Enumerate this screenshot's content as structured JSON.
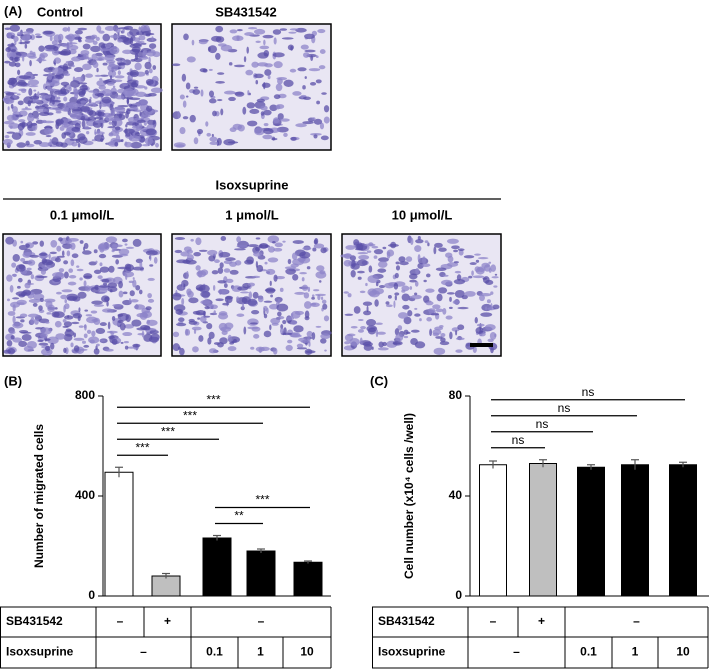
{
  "panel_a": {
    "label": "(A)",
    "top_images": [
      "Control",
      "SB431542"
    ],
    "group_label": "Isoxsuprine",
    "bottom_images": [
      "0.1 μmol/L",
      "1 μmol/L",
      "10 μmol/L"
    ]
  },
  "chart_data": [
    {
      "type": "bar",
      "panel": "(B)",
      "y_label": "Number of migrated cells",
      "categories": [
        null,
        null,
        null,
        null,
        null
      ],
      "values": [
        495,
        80,
        232,
        180,
        135
      ],
      "errors": [
        20,
        10,
        10,
        8,
        5
      ],
      "colors": [
        "#ffffff",
        "#bfbfbf",
        "#000000",
        "#000000",
        "#000000"
      ],
      "ylim": [
        0,
        800
      ],
      "yticks": [
        0,
        400,
        800
      ],
      "comparisons": [
        {
          "pair": [
            2,
            3
          ],
          "label": "**"
        },
        {
          "pair": [
            2,
            4
          ],
          "label": "***"
        },
        {
          "pair": [
            0,
            1
          ],
          "label": "***"
        },
        {
          "pair": [
            0,
            2
          ],
          "label": "***"
        },
        {
          "pair": [
            0,
            3
          ],
          "label": "***"
        },
        {
          "pair": [
            0,
            4
          ],
          "label": "***"
        }
      ],
      "table": {
        "rows": [
          {
            "name": "SB431542",
            "cells": [
              "–",
              "+",
              "–"
            ],
            "spans": [
              1,
              1,
              3
            ]
          },
          {
            "name": "Isoxsuprine",
            "cells": [
              "–",
              "0.1",
              "1",
              "10"
            ],
            "spans": [
              2,
              1,
              1,
              1
            ]
          }
        ]
      }
    },
    {
      "type": "bar",
      "panel": "(C)",
      "y_label": "Cell number (x10⁴ cells /well)",
      "categories": [
        null,
        null,
        null,
        null,
        null
      ],
      "values": [
        52.5,
        53,
        51.5,
        52.5,
        52.5
      ],
      "errors": [
        1.5,
        1.5,
        1,
        2,
        1
      ],
      "colors": [
        "#ffffff",
        "#bfbfbf",
        "#000000",
        "#000000",
        "#000000"
      ],
      "ylim": [
        0,
        80
      ],
      "yticks": [
        0,
        40,
        80
      ],
      "comparisons": [
        {
          "pair": [
            0,
            1
          ],
          "label": "ns"
        },
        {
          "pair": [
            0,
            2
          ],
          "label": "ns"
        },
        {
          "pair": [
            0,
            3
          ],
          "label": "ns"
        },
        {
          "pair": [
            0,
            4
          ],
          "label": "ns"
        }
      ],
      "table": {
        "rows": [
          {
            "name": "SB431542",
            "cells": [
              "–",
              "+",
              "–"
            ],
            "spans": [
              1,
              1,
              3
            ]
          },
          {
            "name": "Isoxsuprine",
            "cells": [
              "–",
              "0.1",
              "1",
              "10"
            ],
            "spans": [
              2,
              1,
              1,
              1
            ]
          }
        ]
      }
    }
  ]
}
